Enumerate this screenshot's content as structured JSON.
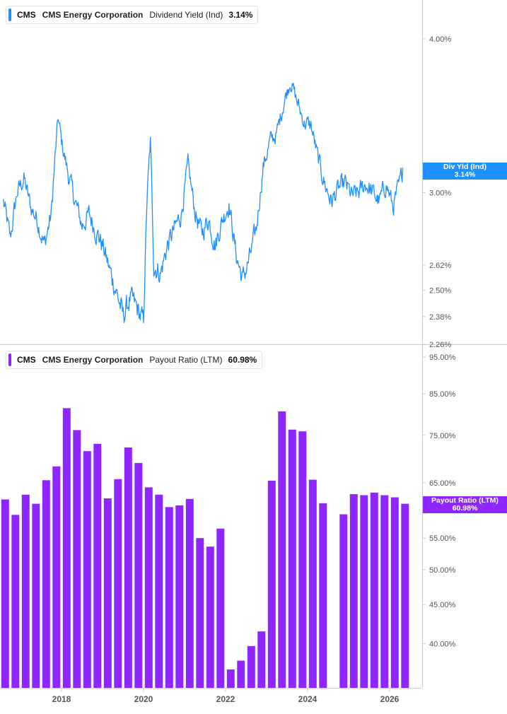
{
  "legend": {
    "top": {
      "ticker": "CMS",
      "company": "CMS Energy Corporation",
      "metric": "Dividend Yield (Ind)",
      "value": "3.14%"
    },
    "bottom": {
      "ticker": "CMS",
      "company": "CMS Energy Corporation",
      "metric": "Payout Ratio (LTM)",
      "value": "60.98%"
    }
  },
  "flags": {
    "div_yield": {
      "line1": "Div Yld (Ind)",
      "line2": "3.14%"
    },
    "payout": {
      "line1": "Payout Ratio (LTM)",
      "line2": "60.98%"
    }
  },
  "colors": {
    "yield_line": "#1e90ff",
    "payout_bar": "#8f26ff",
    "axis": "#cccccc",
    "tick_text": "#555555"
  },
  "chart_data": [
    {
      "type": "line",
      "series": [
        {
          "name": "Dividend Yield (Ind)",
          "x": [
            "2016-08",
            "2016-10",
            "2016-12",
            "2017-02",
            "2017-04",
            "2017-06",
            "2017-08",
            "2017-10",
            "2017-12",
            "2018-01",
            "2018-03",
            "2018-05",
            "2018-07",
            "2018-09",
            "2018-11",
            "2019-01",
            "2019-03",
            "2019-05",
            "2019-07",
            "2019-09",
            "2019-11",
            "2020-01",
            "2020-02",
            "2020-03",
            "2020-04",
            "2020-06",
            "2020-08",
            "2020-10",
            "2020-12",
            "2021-02",
            "2021-04",
            "2021-06",
            "2021-08",
            "2021-10",
            "2021-12",
            "2022-02",
            "2022-04",
            "2022-06",
            "2022-08",
            "2022-10",
            "2022-12",
            "2023-02",
            "2023-04",
            "2023-06",
            "2023-08",
            "2023-10",
            "2023-12",
            "2024-02",
            "2024-04",
            "2024-06",
            "2024-08",
            "2024-10",
            "2024-12",
            "2025-02",
            "2025-04",
            "2025-06",
            "2025-08",
            "2025-10",
            "2025-12",
            "2026-02",
            "2026-04",
            "2026-05"
          ],
          "values": [
            2.95,
            2.75,
            3.0,
            3.08,
            2.92,
            2.85,
            2.72,
            2.88,
            3.45,
            3.3,
            3.1,
            2.95,
            2.82,
            2.88,
            2.8,
            2.72,
            2.6,
            2.5,
            2.38,
            2.46,
            2.42,
            2.35,
            2.95,
            3.3,
            2.62,
            2.58,
            2.72,
            2.8,
            2.88,
            3.15,
            2.9,
            2.78,
            2.86,
            2.72,
            2.85,
            2.94,
            2.68,
            2.55,
            2.65,
            2.8,
            3.15,
            3.3,
            3.35,
            3.55,
            3.7,
            3.55,
            3.42,
            3.4,
            3.2,
            3.05,
            2.95,
            3.02,
            3.05,
            2.98,
            3.0,
            3.05,
            3.0,
            2.95,
            3.05,
            2.92,
            3.05,
            3.14
          ]
        }
      ],
      "yticks": [
        "4.00%",
        "3.00%",
        "2.62%",
        "2.50%",
        "2.38%",
        "2.26%"
      ],
      "log_scale": true,
      "ylim": [
        2.26,
        4.3
      ]
    },
    {
      "type": "bar",
      "series": [
        {
          "name": "Payout Ratio (LTM)",
          "x": [
            "2016-Q3",
            "2016-Q4",
            "2017-Q1",
            "2017-Q2",
            "2017-Q3",
            "2017-Q4",
            "2018-Q1",
            "2018-Q2",
            "2018-Q3",
            "2018-Q4",
            "2019-Q1",
            "2019-Q2",
            "2019-Q3",
            "2019-Q4",
            "2020-Q1",
            "2020-Q2",
            "2020-Q3",
            "2020-Q4",
            "2021-Q1",
            "2021-Q2",
            "2021-Q3",
            "2021-Q4",
            "2022-Q1",
            "2022-Q2",
            "2022-Q3",
            "2022-Q4",
            "2023-Q1",
            "2023-Q2",
            "2023-Q3",
            "2023-Q4",
            "2024-Q1",
            "2024-Q2",
            "2024-Q3",
            "2024-Q4",
            "2025-Q1",
            "2025-Q2",
            "2025-Q3",
            "2025-Q4",
            "2026-Q1",
            "2026-Q2"
          ],
          "values": [
            61.8,
            59.0,
            62.7,
            61.0,
            65.5,
            68.3,
            81.4,
            76.2,
            71.5,
            73.1,
            62.0,
            65.7,
            72.3,
            69.0,
            64.1,
            62.7,
            60.4,
            60.7,
            61.9,
            55.0,
            53.6,
            56.6,
            37.0,
            38.0,
            39.7,
            41.5,
            65.4,
            80.6,
            76.3,
            75.9,
            65.6,
            61.1,
            null,
            59.1,
            62.8,
            62.6,
            63.1,
            62.6,
            62.2,
            61.0
          ]
        }
      ],
      "xticks": [
        "2018",
        "2020",
        "2022",
        "2024",
        "2026"
      ],
      "yticks": [
        "95.00%",
        "85.00%",
        "75.00%",
        "65.00%",
        "55.00%",
        "50.00%",
        "45.00%",
        "40.00%"
      ],
      "log_scale": true,
      "ylim": [
        35,
        95
      ]
    }
  ]
}
